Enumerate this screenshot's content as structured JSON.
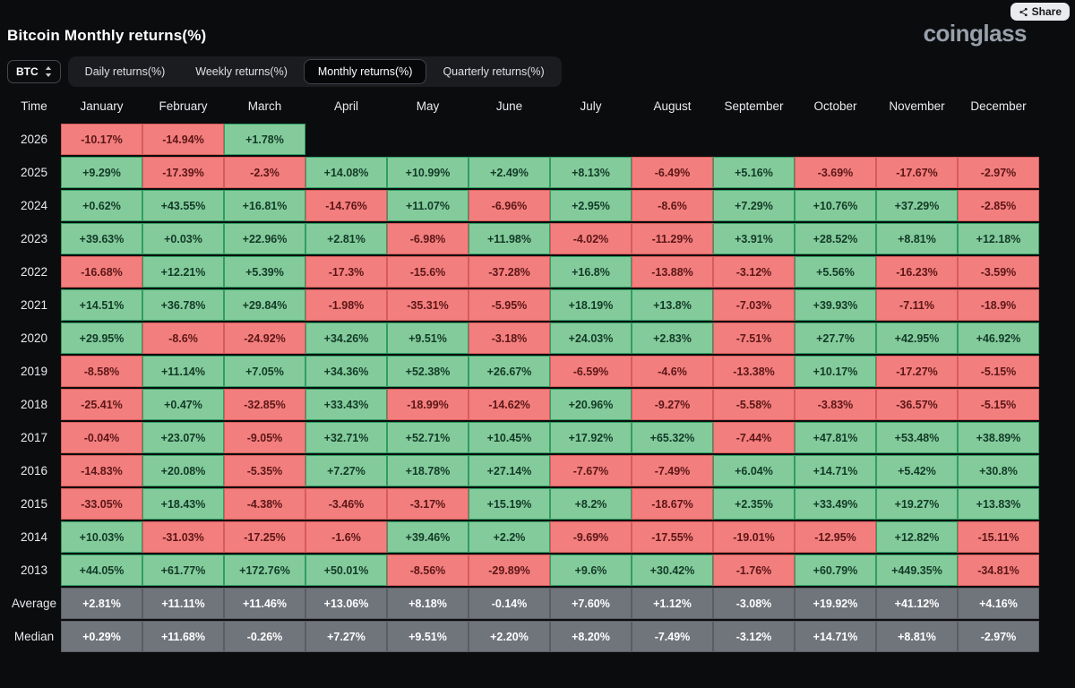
{
  "header": {
    "title": "Bitcoin Monthly returns(%)",
    "brand": "coinglass",
    "share_label": "Share"
  },
  "controls": {
    "symbol": "BTC",
    "tabs": [
      {
        "label": "Daily returns(%)",
        "active": false
      },
      {
        "label": "Weekly returns(%)",
        "active": false
      },
      {
        "label": "Monthly returns(%)",
        "active": true
      },
      {
        "label": "Quarterly returns(%)",
        "active": false
      }
    ]
  },
  "colors": {
    "positive_bg": "#84cb9c",
    "positive_border": "#2f9e63",
    "positive_text": "#123a26",
    "negative_bg": "#f37e7e",
    "negative_border": "#d65c5c",
    "negative_text": "#5c1616",
    "summary_bg": "#70747b",
    "summary_border": "#5a5d63",
    "summary_text": "#ffffff"
  },
  "chart_data": {
    "type": "heatmap",
    "title": "Bitcoin Monthly returns(%)",
    "columns": [
      "Time",
      "January",
      "February",
      "March",
      "April",
      "May",
      "June",
      "July",
      "August",
      "September",
      "October",
      "November",
      "December"
    ],
    "rows": [
      {
        "label": "2026",
        "summary": false,
        "values": [
          "-10.17%",
          "-14.94%",
          "+1.78%",
          "",
          "",
          "",
          "",
          "",
          "",
          "",
          "",
          ""
        ]
      },
      {
        "label": "2025",
        "summary": false,
        "values": [
          "+9.29%",
          "-17.39%",
          "-2.3%",
          "+14.08%",
          "+10.99%",
          "+2.49%",
          "+8.13%",
          "-6.49%",
          "+5.16%",
          "-3.69%",
          "-17.67%",
          "-2.97%"
        ]
      },
      {
        "label": "2024",
        "summary": false,
        "values": [
          "+0.62%",
          "+43.55%",
          "+16.81%",
          "-14.76%",
          "+11.07%",
          "-6.96%",
          "+2.95%",
          "-8.6%",
          "+7.29%",
          "+10.76%",
          "+37.29%",
          "-2.85%"
        ]
      },
      {
        "label": "2023",
        "summary": false,
        "values": [
          "+39.63%",
          "+0.03%",
          "+22.96%",
          "+2.81%",
          "-6.98%",
          "+11.98%",
          "-4.02%",
          "-11.29%",
          "+3.91%",
          "+28.52%",
          "+8.81%",
          "+12.18%"
        ]
      },
      {
        "label": "2022",
        "summary": false,
        "values": [
          "-16.68%",
          "+12.21%",
          "+5.39%",
          "-17.3%",
          "-15.6%",
          "-37.28%",
          "+16.8%",
          "-13.88%",
          "-3.12%",
          "+5.56%",
          "-16.23%",
          "-3.59%"
        ]
      },
      {
        "label": "2021",
        "summary": false,
        "values": [
          "+14.51%",
          "+36.78%",
          "+29.84%",
          "-1.98%",
          "-35.31%",
          "-5.95%",
          "+18.19%",
          "+13.8%",
          "-7.03%",
          "+39.93%",
          "-7.11%",
          "-18.9%"
        ]
      },
      {
        "label": "2020",
        "summary": false,
        "values": [
          "+29.95%",
          "-8.6%",
          "-24.92%",
          "+34.26%",
          "+9.51%",
          "-3.18%",
          "+24.03%",
          "+2.83%",
          "-7.51%",
          "+27.7%",
          "+42.95%",
          "+46.92%"
        ]
      },
      {
        "label": "2019",
        "summary": false,
        "values": [
          "-8.58%",
          "+11.14%",
          "+7.05%",
          "+34.36%",
          "+52.38%",
          "+26.67%",
          "-6.59%",
          "-4.6%",
          "-13.38%",
          "+10.17%",
          "-17.27%",
          "-5.15%"
        ]
      },
      {
        "label": "2018",
        "summary": false,
        "values": [
          "-25.41%",
          "+0.47%",
          "-32.85%",
          "+33.43%",
          "-18.99%",
          "-14.62%",
          "+20.96%",
          "-9.27%",
          "-5.58%",
          "-3.83%",
          "-36.57%",
          "-5.15%"
        ]
      },
      {
        "label": "2017",
        "summary": false,
        "values": [
          "-0.04%",
          "+23.07%",
          "-9.05%",
          "+32.71%",
          "+52.71%",
          "+10.45%",
          "+17.92%",
          "+65.32%",
          "-7.44%",
          "+47.81%",
          "+53.48%",
          "+38.89%"
        ]
      },
      {
        "label": "2016",
        "summary": false,
        "values": [
          "-14.83%",
          "+20.08%",
          "-5.35%",
          "+7.27%",
          "+18.78%",
          "+27.14%",
          "-7.67%",
          "-7.49%",
          "+6.04%",
          "+14.71%",
          "+5.42%",
          "+30.8%"
        ]
      },
      {
        "label": "2015",
        "summary": false,
        "values": [
          "-33.05%",
          "+18.43%",
          "-4.38%",
          "-3.46%",
          "-3.17%",
          "+15.19%",
          "+8.2%",
          "-18.67%",
          "+2.35%",
          "+33.49%",
          "+19.27%",
          "+13.83%"
        ]
      },
      {
        "label": "2014",
        "summary": false,
        "values": [
          "+10.03%",
          "-31.03%",
          "-17.25%",
          "-1.6%",
          "+39.46%",
          "+2.2%",
          "-9.69%",
          "-17.55%",
          "-19.01%",
          "-12.95%",
          "+12.82%",
          "-15.11%"
        ]
      },
      {
        "label": "2013",
        "summary": false,
        "values": [
          "+44.05%",
          "+61.77%",
          "+172.76%",
          "+50.01%",
          "-8.56%",
          "-29.89%",
          "+9.6%",
          "+30.42%",
          "-1.76%",
          "+60.79%",
          "+449.35%",
          "-34.81%"
        ]
      },
      {
        "label": "Average",
        "summary": true,
        "values": [
          "+2.81%",
          "+11.11%",
          "+11.46%",
          "+13.06%",
          "+8.18%",
          "-0.14%",
          "+7.60%",
          "+1.12%",
          "-3.08%",
          "+19.92%",
          "+41.12%",
          "+4.16%"
        ]
      },
      {
        "label": "Median",
        "summary": true,
        "values": [
          "+0.29%",
          "+11.68%",
          "-0.26%",
          "+7.27%",
          "+9.51%",
          "+2.20%",
          "+8.20%",
          "-7.49%",
          "-3.12%",
          "+14.71%",
          "+8.81%",
          "-2.97%"
        ]
      }
    ]
  }
}
